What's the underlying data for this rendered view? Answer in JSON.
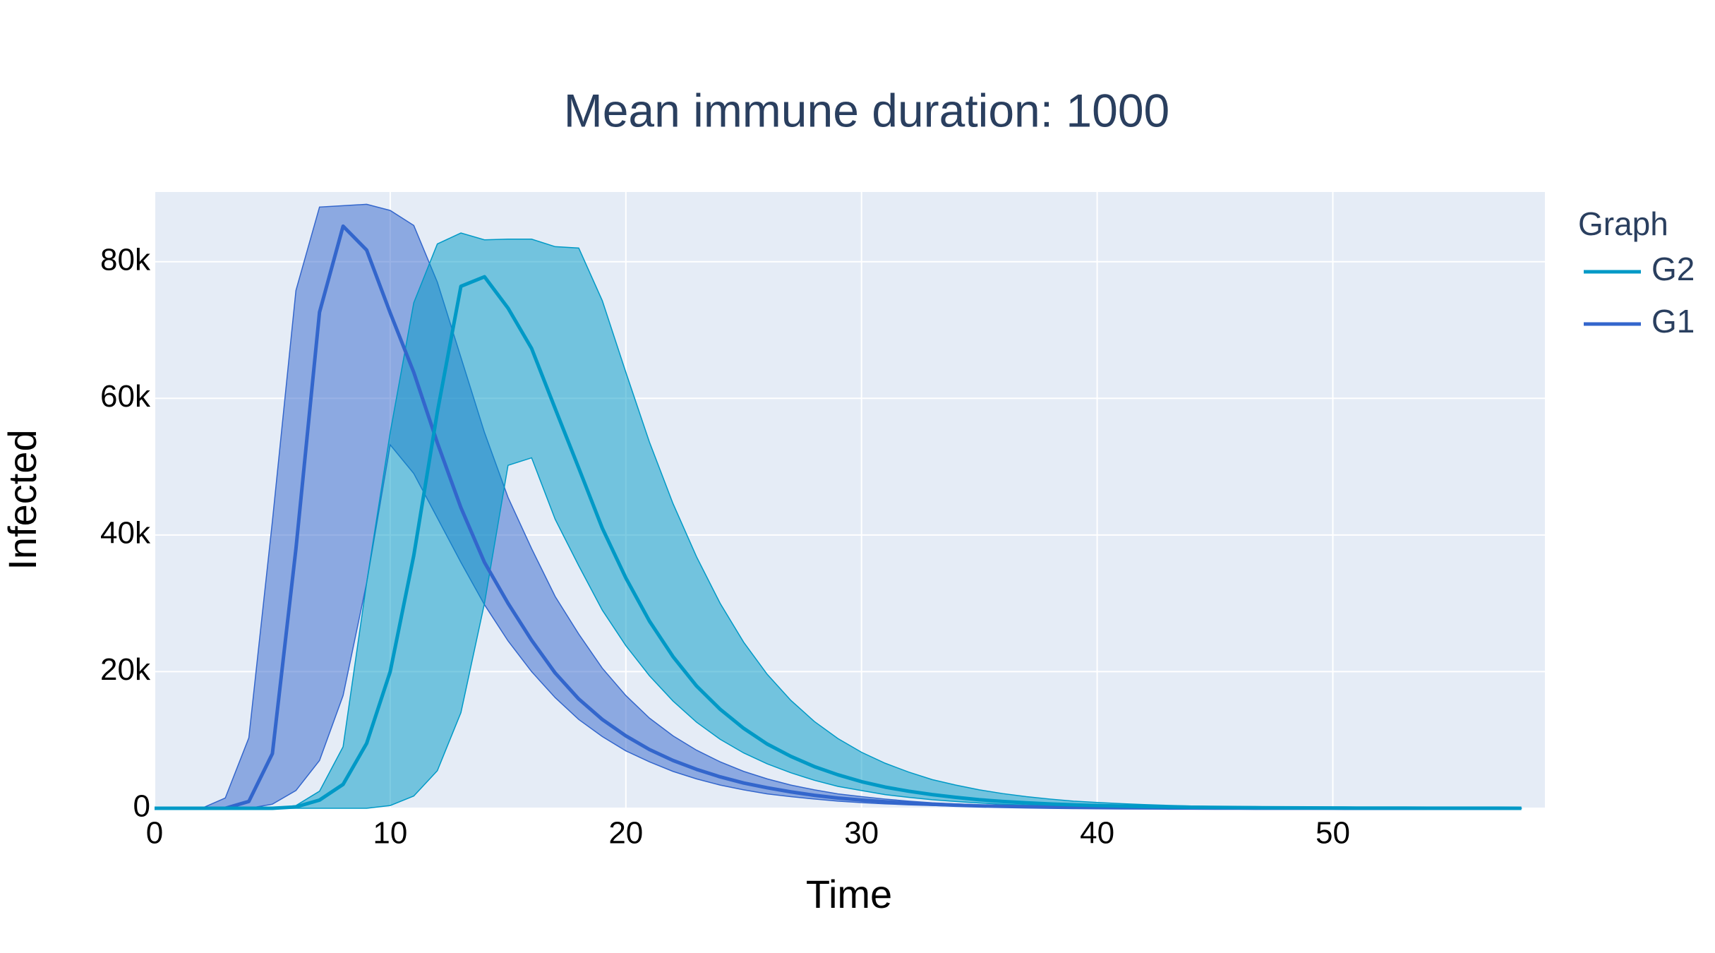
{
  "chart_data": {
    "type": "band-line",
    "title": "Mean immune duration: 1000",
    "x_label": "Time",
    "y_label": "Infected",
    "legend_title": "Graph",
    "x": [
      0,
      1,
      2,
      3,
      4,
      5,
      6,
      7,
      8,
      9,
      10,
      11,
      12,
      13,
      14,
      15,
      16,
      17,
      18,
      19,
      20,
      21,
      22,
      23,
      24,
      25,
      26,
      27,
      28,
      29,
      30,
      31,
      32,
      33,
      34,
      35,
      36,
      37,
      38,
      39,
      40,
      41,
      42,
      43,
      44,
      45,
      46,
      47,
      48,
      49,
      50,
      51,
      52,
      53,
      54,
      55,
      56,
      57,
      58
    ],
    "xlim": [
      0,
      59
    ],
    "xticks": [
      0,
      10,
      20,
      30,
      40,
      50
    ],
    "ylim": [
      0,
      90200
    ],
    "yticks": [
      0,
      {
        "value": 20000,
        "label": "20k"
      },
      {
        "value": 40000,
        "label": "40k"
      },
      {
        "value": 60000,
        "label": "60k"
      },
      {
        "value": 80000,
        "label": "80k"
      }
    ],
    "grid": true,
    "series": [
      {
        "name": "G2",
        "color": "#0099c6",
        "values": [
          0,
          0,
          0,
          0,
          0,
          0,
          200,
          1200,
          3500,
          9500,
          20000,
          37000,
          58000,
          76400,
          77800,
          73200,
          67300,
          58500,
          49800,
          41000,
          33700,
          27400,
          22200,
          17900,
          14500,
          11700,
          9400,
          7600,
          6100,
          4900,
          3900,
          3100,
          2500,
          2000,
          1600,
          1250,
          1000,
          800,
          630,
          500,
          400,
          320,
          250,
          200,
          160,
          125,
          100,
          80,
          62,
          50,
          40,
          31,
          25,
          20,
          16,
          12,
          10,
          8,
          6
        ],
        "upper": [
          0,
          0,
          0,
          0,
          0,
          0,
          400,
          2500,
          9000,
          33000,
          55000,
          74000,
          82600,
          84200,
          83200,
          83300,
          83300,
          82200,
          82000,
          74300,
          63800,
          53600,
          44600,
          36800,
          30000,
          24300,
          19600,
          15800,
          12700,
          10200,
          8200,
          6600,
          5300,
          4200,
          3400,
          2700,
          2150,
          1700,
          1350,
          1050,
          850,
          680,
          540,
          430,
          340,
          270,
          215,
          170,
          135,
          107,
          85,
          68,
          54,
          43,
          34,
          27,
          21,
          17,
          13
        ],
        "lower": [
          0,
          0,
          0,
          0,
          0,
          0,
          0,
          0,
          0,
          0,
          400,
          1800,
          5500,
          14000,
          30000,
          50200,
          51300,
          42300,
          35500,
          29000,
          23800,
          19400,
          15700,
          12600,
          10100,
          8100,
          6500,
          5200,
          4100,
          3200,
          2600,
          2000,
          1600,
          1250,
          1000,
          780,
          600,
          470,
          370,
          290,
          230,
          180,
          140,
          110,
          87,
          68,
          53,
          42,
          33,
          26,
          20,
          16,
          12,
          10,
          8,
          6,
          5,
          4,
          3
        ]
      },
      {
        "name": "G1",
        "color": "#3366cc",
        "values": [
          0,
          0,
          0,
          0,
          1000,
          8000,
          38000,
          72600,
          85200,
          81700,
          72500,
          63800,
          53500,
          44000,
          36000,
          30000,
          24600,
          19800,
          16000,
          13000,
          10600,
          8600,
          7000,
          5700,
          4600,
          3700,
          3000,
          2400,
          1900,
          1500,
          1200,
          950,
          750,
          600,
          450,
          350,
          280,
          220,
          170,
          130,
          100,
          80,
          60,
          45,
          35,
          27,
          20,
          15,
          12,
          9,
          7,
          5,
          4,
          3,
          2,
          2,
          1,
          1,
          1
        ],
        "upper": [
          0,
          0,
          0,
          1500,
          10300,
          42000,
          75800,
          88000,
          88200,
          88400,
          87500,
          85300,
          77000,
          66000,
          55000,
          45500,
          38000,
          31000,
          25500,
          20500,
          16500,
          13200,
          10600,
          8500,
          6800,
          5400,
          4300,
          3400,
          2700,
          2100,
          1700,
          1350,
          1050,
          800,
          650,
          500,
          400,
          300,
          240,
          190,
          150,
          120,
          90,
          70,
          55,
          42,
          32,
          25,
          19,
          15,
          11,
          9,
          7,
          5,
          4,
          3,
          2,
          2,
          1
        ],
        "lower": [
          0,
          0,
          0,
          0,
          0,
          600,
          2600,
          7000,
          16500,
          33000,
          53200,
          49000,
          42500,
          36000,
          29800,
          24500,
          20000,
          16200,
          13000,
          10500,
          8400,
          6800,
          5400,
          4300,
          3400,
          2700,
          2100,
          1700,
          1350,
          1050,
          830,
          650,
          510,
          400,
          310,
          240,
          190,
          150,
          115,
          90,
          70,
          55,
          42,
          32,
          25,
          19,
          15,
          11,
          9,
          7,
          5,
          4,
          3,
          2,
          2,
          1,
          1,
          1,
          1
        ]
      }
    ]
  }
}
